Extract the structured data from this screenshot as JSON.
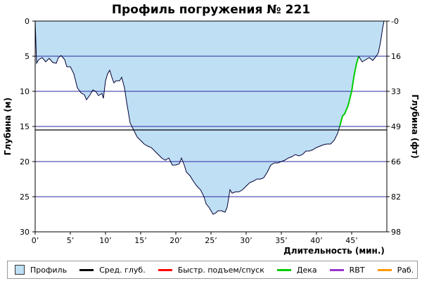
{
  "chart_data": {
    "type": "area",
    "title": "Профиль погружения № 221",
    "xlabel": "Длительность (мин.)",
    "ylabel_left": "Глубина (м)",
    "ylabel_right": "Глубина (фт)",
    "xlim": [
      0,
      50
    ],
    "ylim": [
      0,
      30
    ],
    "y_inverted": true,
    "x_tick_labels": [
      "0’",
      "5’",
      "10’",
      "15’",
      "20’",
      "25’",
      "30’",
      "35’",
      "40’",
      "45’"
    ],
    "x_tick_values": [
      0,
      5,
      10,
      15,
      20,
      25,
      30,
      35,
      40,
      45
    ],
    "y_tick_values": [
      0,
      5,
      10,
      15,
      20,
      25,
      30
    ],
    "y_tick_labels": [
      "0",
      "5",
      "10",
      "15",
      "20",
      "25",
      "30"
    ],
    "y_right_tick_labels": [
      "0",
      "16",
      "33",
      "49",
      "66",
      "82",
      "98"
    ],
    "avg_depth": 15.5,
    "colors": {
      "fill": "#bfdff5",
      "profile_line": "#000033",
      "grid": "#2a2aa0",
      "avg": "#000000",
      "deco": "#00cc00",
      "fast": "#ff0000",
      "rbt": "#9933cc",
      "work": "#ff9900"
    },
    "profile": [
      [
        0,
        0
      ],
      [
        0.1,
        3
      ],
      [
        0.2,
        6
      ],
      [
        0.5,
        5.5
      ],
      [
        1,
        5.2
      ],
      [
        1.5,
        5.8
      ],
      [
        2,
        5.3
      ],
      [
        2.5,
        5.9
      ],
      [
        3,
        6
      ],
      [
        3.3,
        5.2
      ],
      [
        3.7,
        4.9
      ],
      [
        4.2,
        5.5
      ],
      [
        4.5,
        6.5
      ],
      [
        5,
        6.5
      ],
      [
        5.5,
        7.5
      ],
      [
        6,
        9.5
      ],
      [
        6.5,
        10.2
      ],
      [
        7,
        10.5
      ],
      [
        7.3,
        11.2
      ],
      [
        7.8,
        10.5
      ],
      [
        8.2,
        9.8
      ],
      [
        8.6,
        10
      ],
      [
        9,
        10.6
      ],
      [
        9.5,
        10.3
      ],
      [
        9.7,
        11
      ],
      [
        10,
        8.5
      ],
      [
        10.3,
        7.5
      ],
      [
        10.6,
        7
      ],
      [
        10.9,
        8
      ],
      [
        11.2,
        8.8
      ],
      [
        11.5,
        8.5
      ],
      [
        12,
        8.5
      ],
      [
        12.3,
        8
      ],
      [
        12.7,
        9.5
      ],
      [
        13,
        11.5
      ],
      [
        13.5,
        14.5
      ],
      [
        14,
        15.5
      ],
      [
        14.5,
        16.5
      ],
      [
        15,
        17
      ],
      [
        15.5,
        17.5
      ],
      [
        16,
        17.8
      ],
      [
        16.5,
        18
      ],
      [
        17,
        18.5
      ],
      [
        17.5,
        19
      ],
      [
        18,
        19.5
      ],
      [
        18.5,
        19.8
      ],
      [
        19,
        19.5
      ],
      [
        19.5,
        20.5
      ],
      [
        20,
        20.5
      ],
      [
        20.5,
        20.3
      ],
      [
        20.8,
        19.5
      ],
      [
        21.2,
        20.5
      ],
      [
        21.5,
        21.5
      ],
      [
        22,
        22
      ],
      [
        22.5,
        22.8
      ],
      [
        23,
        23.5
      ],
      [
        23.5,
        24
      ],
      [
        24,
        25
      ],
      [
        24.3,
        26
      ],
      [
        24.7,
        26.5
      ],
      [
        25,
        27
      ],
      [
        25.3,
        27.5
      ],
      [
        25.7,
        27.3
      ],
      [
        26,
        27
      ],
      [
        26.5,
        27
      ],
      [
        27,
        27.2
      ],
      [
        27.3,
        26.5
      ],
      [
        27.7,
        24
      ],
      [
        28,
        24.5
      ],
      [
        28.5,
        24.3
      ],
      [
        29,
        24.3
      ],
      [
        29.5,
        24
      ],
      [
        30,
        23.5
      ],
      [
        30.5,
        23
      ],
      [
        31,
        22.8
      ],
      [
        31.5,
        22.5
      ],
      [
        32,
        22.5
      ],
      [
        32.5,
        22.3
      ],
      [
        33,
        21.5
      ],
      [
        33.5,
        20.5
      ],
      [
        34,
        20.2
      ],
      [
        34.5,
        20.2
      ],
      [
        35,
        20
      ],
      [
        35.5,
        19.8
      ],
      [
        36,
        19.5
      ],
      [
        36.5,
        19.3
      ],
      [
        37,
        19
      ],
      [
        37.5,
        19.2
      ],
      [
        38,
        19
      ],
      [
        38.5,
        18.5
      ],
      [
        39,
        18.5
      ],
      [
        39.5,
        18.3
      ],
      [
        40,
        18
      ],
      [
        40.5,
        17.8
      ],
      [
        41,
        17.6
      ],
      [
        41.5,
        17.5
      ],
      [
        42,
        17.5
      ],
      [
        42.5,
        17
      ],
      [
        43,
        16
      ],
      [
        43.3,
        15
      ]
    ],
    "deco_segment": [
      [
        43.3,
        15
      ],
      [
        43.7,
        13.5
      ],
      [
        44,
        13.2
      ],
      [
        44.5,
        12
      ],
      [
        45,
        10
      ],
      [
        45.3,
        8
      ],
      [
        45.7,
        6
      ],
      [
        46,
        5
      ]
    ],
    "ascent_end": [
      [
        46,
        5
      ],
      [
        46.3,
        5.5
      ],
      [
        46.5,
        5.8
      ],
      [
        47,
        5.5
      ],
      [
        47.5,
        5.2
      ],
      [
        48,
        5.6
      ],
      [
        48.5,
        5
      ],
      [
        48.8,
        4.5
      ],
      [
        49.1,
        3
      ],
      [
        49.4,
        1
      ],
      [
        49.6,
        0
      ]
    ],
    "legend": [
      {
        "label": "Профиль",
        "kind": "box",
        "color": "#bfdff5"
      },
      {
        "label": "Сред. глуб.",
        "kind": "line",
        "color": "#000000"
      },
      {
        "label": "Быстр. подъем/спуск",
        "kind": "line",
        "color": "#ff0000"
      },
      {
        "label": "Дека",
        "kind": "line",
        "color": "#00cc00"
      },
      {
        "label": "RBT",
        "kind": "line",
        "color": "#9933cc"
      },
      {
        "label": "Раб.",
        "kind": "line",
        "color": "#ff9900"
      }
    ]
  }
}
